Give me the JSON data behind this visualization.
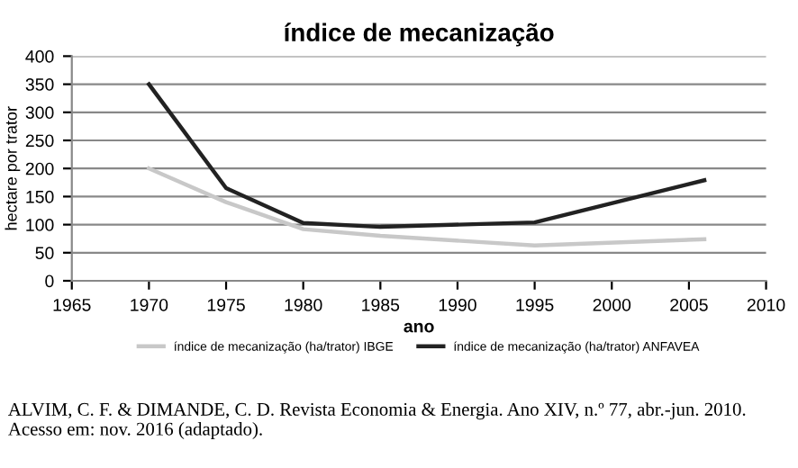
{
  "chart_data": {
    "type": "line",
    "title": "índice de mecanização",
    "xlabel": "ano",
    "ylabel": "hectare por trator",
    "series": [
      {
        "name": "índice de mecanização (ha/trator) IBGE",
        "color": "#c8c8c8",
        "x": [
          1970,
          1975,
          1980,
          1985,
          1995,
          2006
        ],
        "values": [
          200,
          140,
          92,
          80,
          63,
          74
        ]
      },
      {
        "name": "índice de mecanização (ha/trator) ANFAVEA",
        "color": "#222222",
        "x": [
          1970,
          1975,
          1980,
          1985,
          1995,
          2006
        ],
        "values": [
          350,
          165,
          103,
          96,
          104,
          179
        ]
      }
    ],
    "xlim": [
      1965,
      2010
    ],
    "xticks": [
      1965,
      1970,
      1975,
      1980,
      1985,
      1990,
      1995,
      2000,
      2005,
      2010
    ],
    "ylim": [
      0,
      400
    ],
    "yticks": [
      0,
      50,
      100,
      150,
      200,
      250,
      300,
      350,
      400
    ],
    "grid": "y",
    "legend": "bottom",
    "annotations": [
      "ALVIM, C. F. & DIMANDE, C. D. Revista Economia & Energia. Ano XIV, n.º 77, abr.-jun. 2010. Acesso em: nov. 2016 (adaptado)."
    ]
  }
}
